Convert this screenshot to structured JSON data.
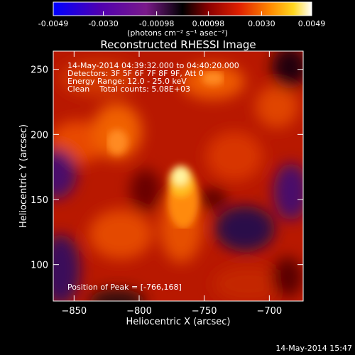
{
  "colorbar": {
    "tick_labels": [
      "-0.0049",
      "-0.0030",
      "-0.00098",
      "0.00098",
      "0.0030",
      "0.0049"
    ],
    "tick_values": [
      -0.0049,
      -0.003,
      -0.00098,
      0.00098,
      0.003,
      0.0049
    ],
    "range": [
      -0.0049,
      0.0049
    ],
    "unit_label": "(photons cm⁻² s⁻¹ asec⁻²)"
  },
  "plot": {
    "title": "Reconstructed RHESSI Image",
    "info_lines": [
      "14-May-2014 04:39:32.000 to 04:40:20.000",
      "Detectors: 3F 5F 6F 7F 8F 9F, Att 0",
      "Energy Range: 12.0 - 25.0 keV",
      "Clean    Total counts: 5.08E+03"
    ],
    "peak_label": "Position of Peak = [-766,168]",
    "xlabel": "Heliocentric X (arcsec)",
    "ylabel": "Heliocentric Y (arcsec)",
    "x_ticks": [
      -850,
      -800,
      -750,
      -700
    ],
    "y_ticks": [
      100,
      150,
      200,
      250
    ],
    "xlim": [
      -866,
      -674
    ],
    "ylim": [
      72,
      264
    ],
    "peak": [
      -766,
      168
    ]
  },
  "footer": {
    "timestamp": "14-May-2014 15:47"
  }
}
